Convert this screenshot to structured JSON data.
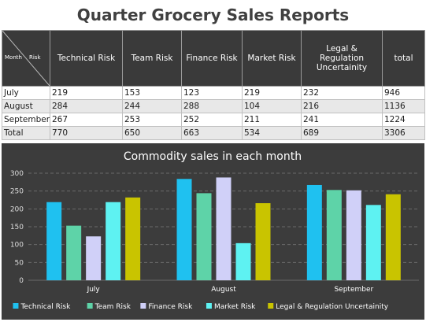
{
  "report_title": "Quarter Grocery Sales Reports",
  "table": {
    "corner_row_label": "Month",
    "corner_col_label": "Risk",
    "headers": [
      "Technical Risk",
      "Team Risk",
      "Finance Risk",
      "Market Risk",
      "Legal & Regulation Uncertainity",
      "total"
    ],
    "rows": [
      {
        "label": "July",
        "values": [
          "219",
          "153",
          "123",
          "219",
          "232",
          "946"
        ]
      },
      {
        "label": "August",
        "values": [
          "284",
          "244",
          "288",
          "104",
          "216",
          "1136"
        ]
      },
      {
        "label": "September",
        "values": [
          "267",
          "253",
          "252",
          "211",
          "241",
          "1224"
        ]
      },
      {
        "label": "Total",
        "values": [
          "770",
          "650",
          "663",
          "534",
          "689",
          "3306"
        ]
      }
    ]
  },
  "chart_data": {
    "type": "bar",
    "title": "Commodity sales in each month",
    "categories": [
      "July",
      "August",
      "September"
    ],
    "series": [
      {
        "name": "Technical Risk",
        "values": [
          219,
          284,
          267
        ],
        "color": "#1fc1f0"
      },
      {
        "name": "Team Risk",
        "values": [
          153,
          244,
          253
        ],
        "color": "#5ed3a8"
      },
      {
        "name": "Finance Risk",
        "values": [
          123,
          288,
          252
        ],
        "color": "#d0d0f8"
      },
      {
        "name": "Market Risk",
        "values": [
          219,
          104,
          211
        ],
        "color": "#5ef2f2"
      },
      {
        "name": "Legal & Regulation Uncertainity",
        "values": [
          232,
          216,
          241
        ],
        "color": "#c9c400"
      }
    ],
    "yticks": [
      0,
      50,
      100,
      150,
      200,
      250,
      300
    ],
    "ylim": [
      0,
      300
    ],
    "xlabel": "",
    "ylabel": "",
    "grid": true,
    "legend": "bottom"
  },
  "colors": {
    "panel_bg": "#3c3c3c",
    "grid": "#6a6a6a",
    "text": "#ffffff",
    "tick_text": "#dddddd"
  }
}
